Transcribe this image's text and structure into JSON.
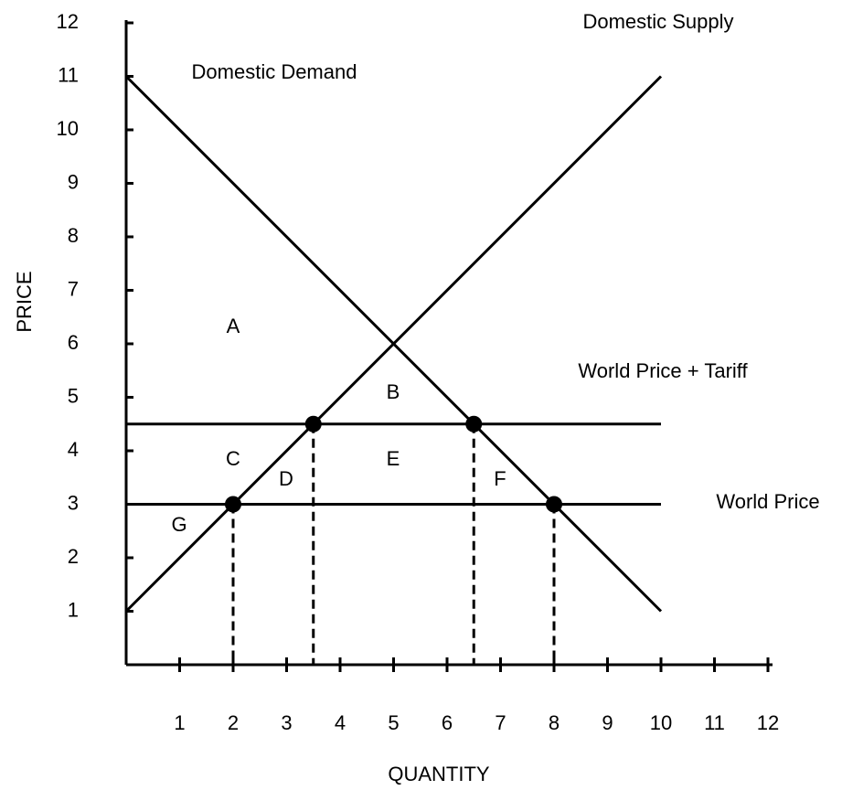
{
  "chart_data": {
    "type": "line",
    "x_label": "QUANTITY",
    "y_label": "PRICE",
    "xlim": [
      0,
      12
    ],
    "ylim": [
      0,
      12
    ],
    "xticks": [
      1,
      2,
      3,
      4,
      5,
      6,
      7,
      8,
      9,
      10,
      11,
      12
    ],
    "yticks": [
      1,
      2,
      3,
      4,
      5,
      6,
      7,
      8,
      9,
      10,
      11,
      12
    ],
    "series": [
      {
        "name": "Domestic Demand",
        "color": "#000000",
        "x": [
          0,
          10
        ],
        "values": [
          11,
          1
        ]
      },
      {
        "name": "Domestic Supply",
        "color": "#000000",
        "x": [
          0,
          10
        ],
        "values": [
          1,
          11
        ]
      },
      {
        "name": "World Price + Tariff",
        "color": "#000000",
        "x": [
          0,
          10
        ],
        "values": [
          4.5,
          4.5
        ]
      },
      {
        "name": "World Price",
        "color": "#000000",
        "x": [
          0,
          10
        ],
        "values": [
          3,
          3
        ]
      }
    ],
    "points": [
      {
        "x": 2,
        "y": 3
      },
      {
        "x": 3.5,
        "y": 4.5
      },
      {
        "x": 6.5,
        "y": 4.5
      },
      {
        "x": 8,
        "y": 3
      }
    ],
    "annotations": [
      "A",
      "B",
      "C",
      "D",
      "E",
      "F",
      "G"
    ]
  }
}
